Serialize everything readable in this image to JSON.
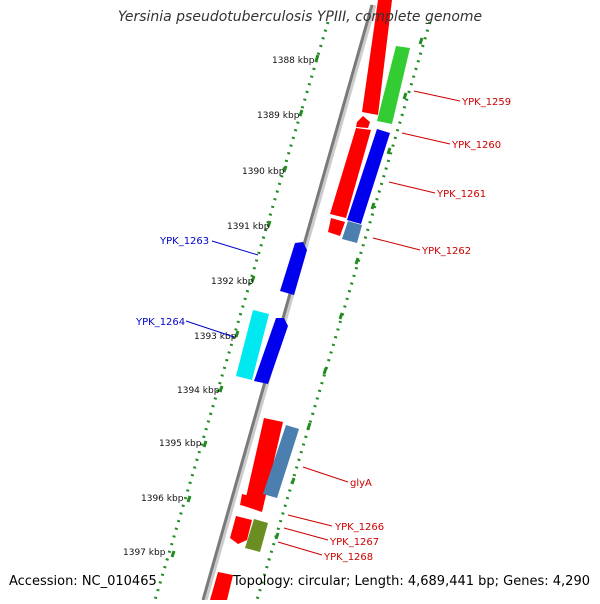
{
  "title": "Yersinia pseudotuberculosis YPIII, complete genome",
  "footer": {
    "accession": "Accession: NC_010465",
    "topology": "Topology: circular; Length: 4,689,441 bp; Genes: 4,290"
  },
  "scale_labels": [
    "1388 kbp",
    "1389 kbp",
    "1390 kbp",
    "1391 kbp",
    "1392 kbp",
    "1393 kbp",
    "1394 kbp",
    "1395 kbp",
    "1396 kbp",
    "1397 kbp"
  ],
  "colors": {
    "forward_cds": "#ff0000",
    "reverse_label": "#0000cc",
    "forward_label": "#cc0000",
    "blue_gene": "#0000ee",
    "steel_gene": "#4a7fb0",
    "cyan_gene": "#00e8f0",
    "green_gene": "#33cc33",
    "olive_gene": "#6b8e23",
    "backbone": "#888888",
    "tick": "#228b22"
  },
  "gene_labels": [
    {
      "text": "YPK_1259",
      "side": "right"
    },
    {
      "text": "YPK_1260",
      "side": "right"
    },
    {
      "text": "YPK_1261",
      "side": "right"
    },
    {
      "text": "YPK_1262",
      "side": "right"
    },
    {
      "text": "YPK_1263",
      "side": "left"
    },
    {
      "text": "YPK_1264",
      "side": "left"
    },
    {
      "text": "glyA",
      "side": "right"
    },
    {
      "text": "YPK_1266",
      "side": "right"
    },
    {
      "text": "YPK_1267",
      "side": "right"
    },
    {
      "text": "YPK_1268",
      "side": "right"
    }
  ]
}
